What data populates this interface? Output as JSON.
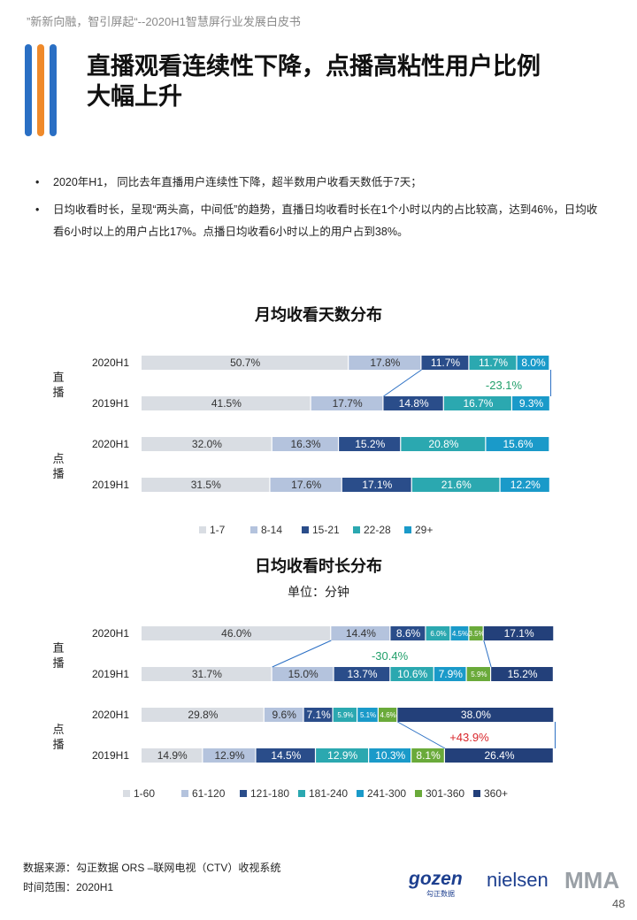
{
  "header_note": "”新新向融，智引屏起“--2020H1智慧屏行业发展白皮书",
  "page_title_lines": [
    "直播观看连续性下降，点播高粘性用户比例",
    "大幅上升"
  ],
  "bullets": [
    "2020年H1， 同比去年直播用户连续性下降，超半数用户收看天数低于7天；",
    "日均收看时长，呈现“两头高，中间低”的趋势，直播日均收看时长在1个小时以内的占比较高，达到46%，日均收看6小时以上的用户占比17%。点播日均收看6小时以上的用户占到38%。"
  ],
  "chart_data": [
    {
      "type": "bar",
      "orientation": "horizontal-stacked-100",
      "title": "月均收看天数分布",
      "subtitle": "",
      "groups": [
        "直播",
        "点播"
      ],
      "categories": [
        "2020H1",
        "2019H1",
        "2020H1",
        "2019H1"
      ],
      "category_groups": [
        "直播",
        "直播",
        "点播",
        "点播"
      ],
      "series": [
        {
          "name": "1-7",
          "color": "#d9dde3",
          "values": [
            50.7,
            41.5,
            32.0,
            31.5
          ]
        },
        {
          "name": "8-14",
          "color": "#b4c3dd",
          "values": [
            17.8,
            17.7,
            16.3,
            17.6
          ]
        },
        {
          "name": "15-21",
          "color": "#2a4d8a",
          "values": [
            11.7,
            14.8,
            15.2,
            17.1
          ]
        },
        {
          "name": "22-28",
          "color": "#2ba8b0",
          "values": [
            11.7,
            16.7,
            20.8,
            21.6
          ]
        },
        {
          "name": "29+",
          "color": "#1a9ac9",
          "values": [
            8.0,
            9.3,
            15.6,
            12.2
          ]
        }
      ],
      "labels": [
        [
          "50.7%",
          "17.8%",
          "11.7%",
          "11.7%",
          "8.0%"
        ],
        [
          "41.5%",
          "17.7%",
          "14.8%",
          "16.7%",
          "9.3%"
        ],
        [
          "32.0%",
          "16.3%",
          "15.2%",
          "20.8%",
          "15.6%"
        ],
        [
          "31.5%",
          "17.6%",
          "17.1%",
          "21.6%",
          "12.2%"
        ]
      ],
      "annotation": {
        "text": "-23.1%",
        "color": "#22a06b"
      },
      "legend_position": "bottom"
    },
    {
      "type": "bar",
      "orientation": "horizontal-stacked-100",
      "title": "日均收看时长分布",
      "subtitle": "单位：分钟",
      "groups": [
        "直播",
        "点播"
      ],
      "categories": [
        "2020H1",
        "2019H1",
        "2020H1",
        "2019H1"
      ],
      "category_groups": [
        "直播",
        "直播",
        "点播",
        "点播"
      ],
      "series": [
        {
          "name": "1-60",
          "color": "#d9dde3",
          "values": [
            46.0,
            31.7,
            29.8,
            14.9
          ]
        },
        {
          "name": "61-120",
          "color": "#b4c3dd",
          "values": [
            14.4,
            15.0,
            9.6,
            12.9
          ]
        },
        {
          "name": "121-180",
          "color": "#2a4d8a",
          "values": [
            8.6,
            13.7,
            7.1,
            14.5
          ]
        },
        {
          "name": "181-240",
          "color": "#2ba8b0",
          "values": [
            6.0,
            10.6,
            5.9,
            12.9
          ]
        },
        {
          "name": "241-300",
          "color": "#1a9ac9",
          "values": [
            4.5,
            7.9,
            5.1,
            10.3
          ]
        },
        {
          "name": "301-360",
          "color": "#6aaa3a",
          "values": [
            3.5,
            5.9,
            4.6,
            8.1
          ]
        },
        {
          "name": "360+",
          "color": "#23407a",
          "values": [
            17.1,
            15.2,
            38.0,
            26.4
          ]
        }
      ],
      "labels": [
        [
          "46.0%",
          "14.4%",
          "8.6%",
          "6.0%",
          "4.5%",
          "3.5%",
          "17.1%"
        ],
        [
          "31.7%",
          "15.0%",
          "13.7%",
          "10.6%",
          "7.9%",
          "5.9%",
          "15.2%"
        ],
        [
          "29.8%",
          "9.6%",
          "7.1%",
          "5.9%",
          "5.1%",
          "4.6%",
          "38.0%"
        ],
        [
          "14.9%",
          "12.9%",
          "14.5%",
          "12.9%",
          "10.3%",
          "8.1%",
          "26.4%"
        ]
      ],
      "annotations": [
        {
          "text": "-30.4%",
          "color": "#22a06b"
        },
        {
          "text": "+43.9%",
          "color": "#d9262b"
        }
      ],
      "legend_position": "bottom"
    }
  ],
  "source_lines": [
    "数据来源：勾正数据  ORS –联网电视（CTV）收视系统",
    "时间范围：2020H1"
  ],
  "logos": {
    "gozen": "gozen",
    "gozen_sub": "勾正数据",
    "nielsen": "nielsen",
    "mma": "MMA"
  },
  "page_number": "48",
  "colors": {
    "accent_orange": "#ef8a2b",
    "accent_blue": "#2a6fc4"
  }
}
